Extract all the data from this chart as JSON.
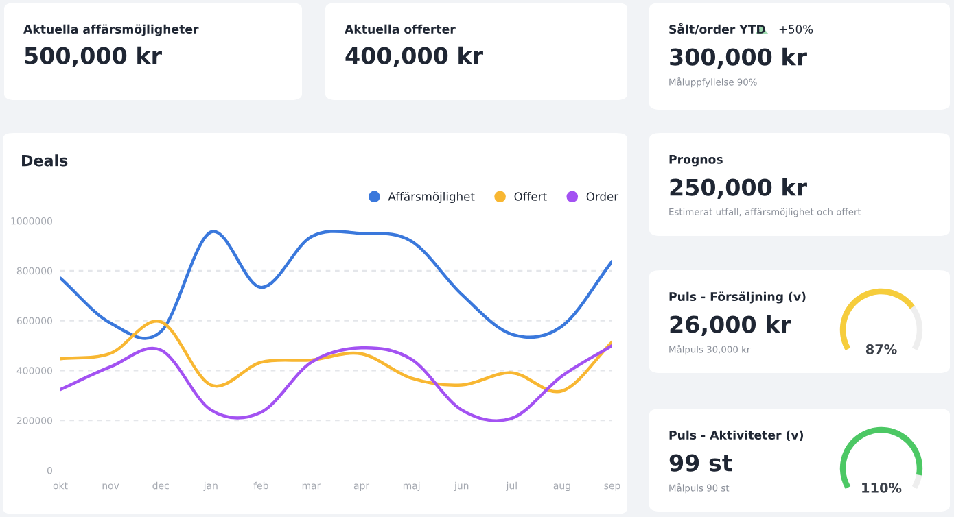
{
  "chart_data": [
    {
      "type": "other",
      "title": "Aktuella affärsmöjligheter",
      "annotations": [
        "500,000 kr"
      ]
    },
    {
      "type": "other",
      "title": "Aktuella offerter",
      "annotations": [
        "400,000 kr"
      ]
    },
    {
      "type": "other",
      "title": "Sålt/order YTD",
      "annotations": [
        "+50%",
        "300,000 kr"
      ],
      "subtitle": "Måluppfyllelse 90%"
    },
    {
      "type": "line",
      "title": "Deals",
      "categories": [
        "okt",
        "nov",
        "dec",
        "jan",
        "feb",
        "mar",
        "apr",
        "maj",
        "jun",
        "jul",
        "aug",
        "sep"
      ],
      "series": [
        {
          "name": "Affärsmöjlighet",
          "color": "#3a78dc",
          "values": [
            770000,
            590000,
            555000,
            955000,
            733000,
            936000,
            950000,
            918000,
            705000,
            545000,
            578000,
            838000
          ]
        },
        {
          "name": "Offert",
          "color": "#f8b732",
          "values": [
            447000,
            469000,
            596000,
            342000,
            433000,
            442000,
            467000,
            369000,
            342000,
            391000,
            318000,
            515000
          ]
        },
        {
          "name": "Order",
          "color": "#a352f2",
          "values": [
            324000,
            415000,
            482000,
            242000,
            233000,
            433000,
            491000,
            445000,
            242000,
            209000,
            378000,
            500000
          ]
        }
      ],
      "ylim": [
        0,
        1000000
      ],
      "yticks": [
        0,
        200000,
        400000,
        600000,
        800000,
        1000000
      ],
      "grid": "y",
      "legend": "top right"
    },
    {
      "type": "other",
      "title": "Prognos",
      "annotations": [
        "250,000 kr"
      ],
      "subtitle": "Estimerat utfall, affärsmöjlighet och offert"
    },
    {
      "type": "other",
      "title": "Puls - Försäljning (v)",
      "annotations": [
        "26,000 kr"
      ],
      "subtitle": "Målpuls 30,000 kr",
      "values": [
        87
      ],
      "value_labels": [
        "87%"
      ]
    },
    {
      "type": "other",
      "title": "Puls - Aktiviteter (v)",
      "annotations": [
        "99 st"
      ],
      "subtitle": "Målpuls 90 st",
      "values": [
        110
      ],
      "value_labels": [
        "110%"
      ]
    }
  ]
}
